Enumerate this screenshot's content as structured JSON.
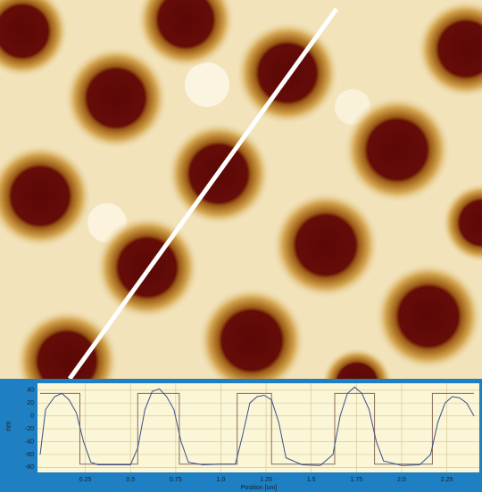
{
  "chart_data": {
    "type": "line",
    "y_label": "nm",
    "x_label": "Position [um]",
    "xlim": [
      0,
      2.42
    ],
    "ylim": [
      -85,
      48
    ],
    "yticks": [
      40,
      20,
      0,
      -20,
      -40,
      -60,
      -80
    ],
    "xticks": [
      0.25,
      0.5,
      0.75,
      {
        "value": 1,
        "label": "1.0"
      },
      1.25,
      1.5,
      1.75,
      {
        "value": 2,
        "label": "2.0"
      },
      2.25
    ],
    "grid": true,
    "series": [
      {
        "color": "#8a6a5a",
        "x": [
          0,
          0.22,
          0.22,
          0.54,
          0.54,
          0.77,
          0.77,
          1.09,
          1.09,
          1.28,
          1.28,
          1.63,
          1.63,
          1.85,
          1.85,
          2.17,
          2.17,
          2.4
        ],
        "values": [
          35,
          35,
          -75,
          -75,
          35,
          35,
          -75,
          -75,
          35,
          35,
          -75,
          -75,
          35,
          35,
          -75,
          -75,
          35,
          35
        ]
      },
      {
        "color": "#3a4f8a",
        "x": [
          0,
          0.03,
          0.08,
          0.12,
          0.16,
          0.2,
          0.24,
          0.28,
          0.32,
          0.4,
          0.5,
          0.54,
          0.58,
          0.62,
          0.66,
          0.7,
          0.74,
          0.78,
          0.82,
          0.9,
          1.0,
          1.08,
          1.12,
          1.16,
          1.2,
          1.24,
          1.28,
          1.32,
          1.36,
          1.45,
          1.55,
          1.62,
          1.66,
          1.7,
          1.74,
          1.78,
          1.82,
          1.86,
          1.9,
          2.0,
          2.1,
          2.16,
          2.2,
          2.24,
          2.28,
          2.32,
          2.36,
          2.4
        ],
        "values": [
          -60,
          10,
          30,
          35,
          25,
          5,
          -40,
          -72,
          -76,
          -76,
          -76,
          -50,
          10,
          38,
          42,
          30,
          10,
          -40,
          -72,
          -76,
          -75,
          -75,
          -30,
          20,
          30,
          32,
          25,
          -10,
          -65,
          -76,
          -77,
          -60,
          0,
          35,
          45,
          35,
          10,
          -40,
          -70,
          -77,
          -76,
          -60,
          -10,
          20,
          30,
          28,
          20,
          0
        ]
      }
    ]
  }
}
